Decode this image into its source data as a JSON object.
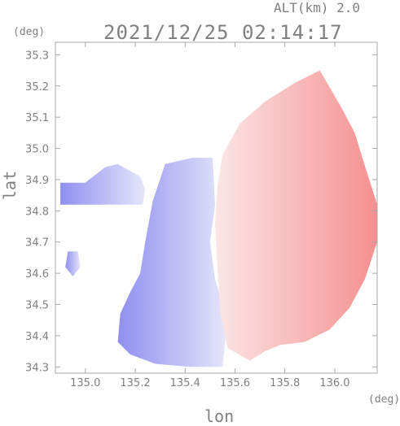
{
  "header": {
    "alt_label": "ALT(km) 2.0",
    "timestamp": "2021/12/25 02:14:17"
  },
  "chart_data": {
    "type": "heatmap",
    "title": "2021/12/25 02:14:17",
    "xlabel": "lon",
    "ylabel": "lat",
    "x_unit": "(deg)",
    "y_unit": "(deg)",
    "xlim": [
      134.88,
      136.17
    ],
    "ylim": [
      34.28,
      35.34
    ],
    "x_ticks": [
      135.0,
      135.2,
      135.4,
      135.6,
      135.8,
      136.0
    ],
    "x_tick_labels": [
      "135.0",
      "135.2",
      "135.4",
      "135.6",
      "135.8",
      "136.0"
    ],
    "y_ticks": [
      34.3,
      34.4,
      34.5,
      34.6,
      34.7,
      34.8,
      34.9,
      35.0,
      35.1,
      35.2,
      35.3
    ],
    "y_tick_labels": [
      "34.3",
      "34.4",
      "34.5",
      "34.6",
      "34.7",
      "34.8",
      "34.9",
      "35.0",
      "35.1",
      "35.2",
      "35.3"
    ],
    "grid": false,
    "colors": {
      "toward": "#7d7df0",
      "away": "#f07d7d",
      "zero": "#ffffff"
    },
    "regions": [
      {
        "name": "negative-velocity-west",
        "sign": "toward",
        "polygon": [
          [
            135.51,
            34.97
          ],
          [
            135.43,
            34.97
          ],
          [
            135.32,
            34.95
          ],
          [
            135.27,
            34.83
          ],
          [
            135.24,
            34.7
          ],
          [
            135.22,
            34.6
          ],
          [
            135.18,
            34.54
          ],
          [
            135.14,
            34.47
          ],
          [
            135.13,
            34.38
          ],
          [
            135.18,
            34.34
          ],
          [
            135.28,
            34.31
          ],
          [
            135.42,
            34.3
          ],
          [
            135.55,
            34.3
          ],
          [
            135.57,
            34.45
          ],
          [
            135.52,
            34.58
          ],
          [
            135.5,
            34.7
          ],
          [
            135.52,
            34.82
          ]
        ]
      },
      {
        "name": "negative-velocity-strip",
        "sign": "toward",
        "polygon": [
          [
            134.9,
            34.89
          ],
          [
            135.0,
            34.89
          ],
          [
            135.08,
            34.94
          ],
          [
            135.13,
            34.95
          ],
          [
            135.22,
            34.91
          ],
          [
            135.24,
            34.87
          ],
          [
            135.23,
            34.82
          ],
          [
            134.9,
            34.82
          ]
        ]
      },
      {
        "name": "negative-velocity-patch",
        "sign": "toward",
        "polygon": [
          [
            134.93,
            34.67
          ],
          [
            134.97,
            34.67
          ],
          [
            134.98,
            34.62
          ],
          [
            134.95,
            34.59
          ],
          [
            134.92,
            34.62
          ]
        ]
      },
      {
        "name": "positive-velocity-east",
        "sign": "away",
        "polygon": [
          [
            135.55,
            34.98
          ],
          [
            135.62,
            35.08
          ],
          [
            135.72,
            35.15
          ],
          [
            135.84,
            35.21
          ],
          [
            135.94,
            35.25
          ],
          [
            136.02,
            35.14
          ],
          [
            136.08,
            35.05
          ],
          [
            136.13,
            34.92
          ],
          [
            136.17,
            34.82
          ],
          [
            136.17,
            34.7
          ],
          [
            136.12,
            34.58
          ],
          [
            136.06,
            34.49
          ],
          [
            135.98,
            34.42
          ],
          [
            135.88,
            34.38
          ],
          [
            135.78,
            34.37
          ],
          [
            135.72,
            34.35
          ],
          [
            135.66,
            34.32
          ],
          [
            135.57,
            34.36
          ],
          [
            135.54,
            34.48
          ],
          [
            135.53,
            34.62
          ],
          [
            135.52,
            34.76
          ],
          [
            135.53,
            34.88
          ]
        ]
      }
    ]
  }
}
